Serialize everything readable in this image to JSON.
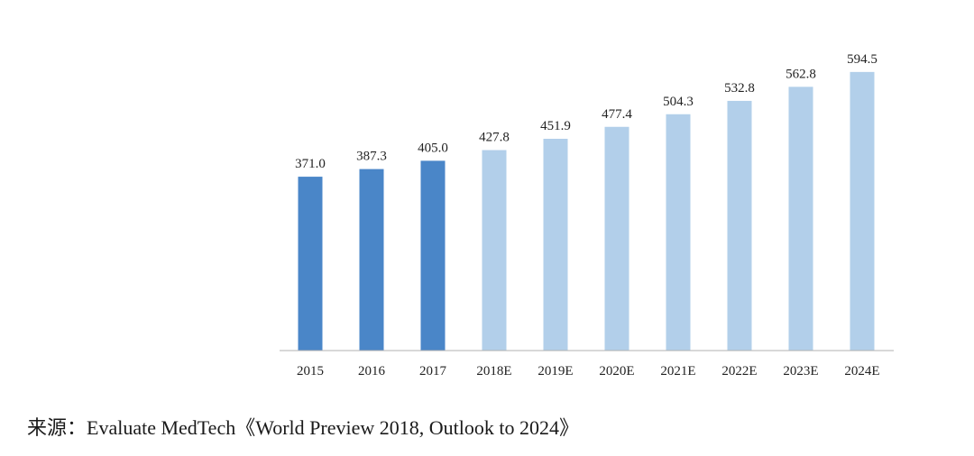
{
  "chart_data": {
    "type": "bar",
    "title": "",
    "xlabel": "",
    "ylabel": "",
    "categories": [
      "2015",
      "2016",
      "2017",
      "2018E",
      "2019E",
      "2020E",
      "2021E",
      "2022E",
      "2023E",
      "2024E"
    ],
    "values": [
      371.0,
      387.3,
      405.0,
      427.8,
      451.9,
      477.4,
      504.3,
      532.8,
      562.8,
      594.5
    ],
    "value_labels": [
      "371.0",
      "387.3",
      "405.0",
      "427.8",
      "451.9",
      "477.4",
      "504.3",
      "532.8",
      "562.8",
      "594.5"
    ],
    "ylim": [
      0,
      600
    ],
    "grid": false,
    "colors": {
      "actual": "#4a86c8",
      "estimate": "#b2cfea",
      "axis": "#b0b0b0"
    },
    "series_kinds": [
      "actual",
      "actual",
      "actual",
      "estimate",
      "estimate",
      "estimate",
      "estimate",
      "estimate",
      "estimate",
      "estimate"
    ]
  },
  "source": {
    "text": "来源：Evaluate MedTech《World Preview 2018, Outlook to 2024》"
  }
}
